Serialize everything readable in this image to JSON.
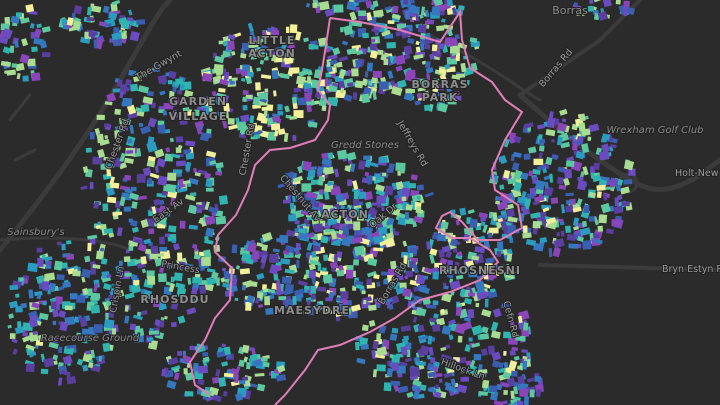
{
  "places": {
    "borras": "Borras",
    "borras_park_1": "BORRAS",
    "borras_park_2": "PARK",
    "little_acton_1": "LITTLE",
    "little_acton_2": "ACTON",
    "garden_village_1": "GARDEN",
    "garden_village_2": "VILLAGE",
    "acton": "ACTON",
    "rhosnesni": "RHOSNESNI",
    "rhosddu": "RHOSDDU",
    "maesydre": "MAESYDRE"
  },
  "pois": {
    "golf": "Wrexham Golf Club",
    "sainsburys": "Sainsbury's",
    "racecourse": "Racecourse Ground",
    "stones": "Gredd Stones"
  },
  "roads": {
    "borras_rd_ne": "Borras Rd",
    "holt": "Holt-New",
    "bryn_estyn": "Bryn Estyn Rd",
    "jeffreys": "Jeffreys Rd",
    "oak": "Oak Dr",
    "borras_rd_c": "Borras Rd",
    "chester": "Chester Rd",
    "east": "East Av",
    "crispin": "Crispin Ln",
    "princess": "Princess",
    "cefn": "Cefn Rd",
    "hillock": "Hillock Ln",
    "gwynt": "The Gwynt",
    "chesnut": "Chestnut Av"
  }
}
